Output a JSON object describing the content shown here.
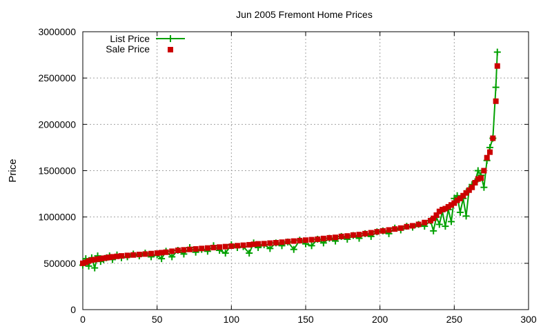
{
  "chart_data": {
    "type": "line",
    "title": "Jun 2005 Fremont Home Prices",
    "xlabel": "",
    "ylabel": "Price",
    "xlim": [
      0,
      300
    ],
    "ylim": [
      0,
      3000000
    ],
    "x_ticks": [
      "0",
      "50",
      "100",
      "150",
      "200",
      "250",
      "300"
    ],
    "y_ticks": [
      "0",
      "500000",
      "1000000",
      "1500000",
      "2000000",
      "2500000",
      "3000000"
    ],
    "grid": true,
    "legend_position": "top-left",
    "colors": {
      "list": "#00a000",
      "sale": "#cc0000"
    },
    "series": [
      {
        "name": "List Price",
        "style": "line+cross",
        "x": [
          0,
          2,
          4,
          6,
          8,
          10,
          12,
          14,
          16,
          18,
          20,
          23,
          26,
          30,
          34,
          38,
          42,
          46,
          50,
          53,
          56,
          60,
          64,
          68,
          72,
          76,
          80,
          84,
          88,
          92,
          96,
          100,
          104,
          108,
          112,
          115,
          118,
          122,
          126,
          130,
          134,
          138,
          142,
          146,
          150,
          154,
          158,
          162,
          166,
          170,
          174,
          178,
          182,
          186,
          190,
          194,
          198,
          202,
          206,
          210,
          214,
          218,
          222,
          226,
          230,
          234,
          236,
          238,
          240,
          242,
          244,
          246,
          248,
          250,
          252,
          254,
          256,
          258,
          260,
          262,
          264,
          266,
          268,
          270,
          272,
          274,
          276,
          278,
          279
        ],
        "y": [
          480000,
          550000,
          470000,
          560000,
          450000,
          580000,
          520000,
          540000,
          560000,
          580000,
          540000,
          590000,
          560000,
          570000,
          600000,
          580000,
          610000,
          570000,
          590000,
          550000,
          630000,
          570000,
          640000,
          600000,
          670000,
          620000,
          650000,
          630000,
          690000,
          640000,
          610000,
          700000,
          670000,
          680000,
          610000,
          720000,
          670000,
          700000,
          660000,
          720000,
          690000,
          730000,
          650000,
          750000,
          710000,
          690000,
          760000,
          720000,
          770000,
          740000,
          790000,
          760000,
          800000,
          770000,
          820000,
          790000,
          840000,
          850000,
          820000,
          880000,
          860000,
          900000,
          890000,
          920000,
          900000,
          960000,
          850000,
          1000000,
          920000,
          1060000,
          900000,
          1080000,
          950000,
          1200000,
          1230000,
          1050000,
          1200000,
          1010000,
          1300000,
          1350000,
          1380000,
          1500000,
          1450000,
          1320000,
          1610000,
          1750000,
          1850000,
          2400000,
          2780000
        ]
      },
      {
        "name": "Sale Price",
        "style": "square",
        "x": [
          0,
          2,
          4,
          6,
          8,
          10,
          12,
          14,
          16,
          18,
          20,
          23,
          26,
          30,
          34,
          38,
          42,
          46,
          50,
          53,
          56,
          60,
          64,
          68,
          72,
          76,
          80,
          84,
          88,
          92,
          96,
          100,
          104,
          108,
          112,
          115,
          118,
          122,
          126,
          130,
          134,
          138,
          142,
          146,
          150,
          154,
          158,
          162,
          166,
          170,
          174,
          178,
          182,
          186,
          190,
          194,
          198,
          202,
          206,
          210,
          214,
          218,
          222,
          226,
          230,
          234,
          236,
          238,
          240,
          242,
          244,
          246,
          248,
          250,
          252,
          254,
          256,
          258,
          260,
          262,
          264,
          266,
          268,
          270,
          272,
          274,
          276,
          278,
          279
        ],
        "y": [
          500000,
          510000,
          525000,
          535000,
          540000,
          545000,
          550000,
          555000,
          560000,
          565000,
          570000,
          575000,
          580000,
          585000,
          590000,
          595000,
          600000,
          605000,
          610000,
          615000,
          620000,
          630000,
          640000,
          645000,
          650000,
          655000,
          660000,
          665000,
          670000,
          675000,
          680000,
          685000,
          690000,
          695000,
          700000,
          705000,
          710000,
          712000,
          718000,
          722000,
          728000,
          735000,
          740000,
          745000,
          750000,
          755000,
          760000,
          768000,
          775000,
          780000,
          790000,
          795000,
          805000,
          810000,
          820000,
          830000,
          840000,
          850000,
          860000,
          870000,
          880000,
          895000,
          905000,
          920000,
          940000,
          960000,
          985000,
          1020000,
          1060000,
          1080000,
          1090000,
          1110000,
          1130000,
          1150000,
          1180000,
          1200000,
          1230000,
          1260000,
          1290000,
          1320000,
          1370000,
          1410000,
          1420000,
          1500000,
          1640000,
          1700000,
          1850000,
          2250000,
          2630000
        ]
      }
    ]
  }
}
